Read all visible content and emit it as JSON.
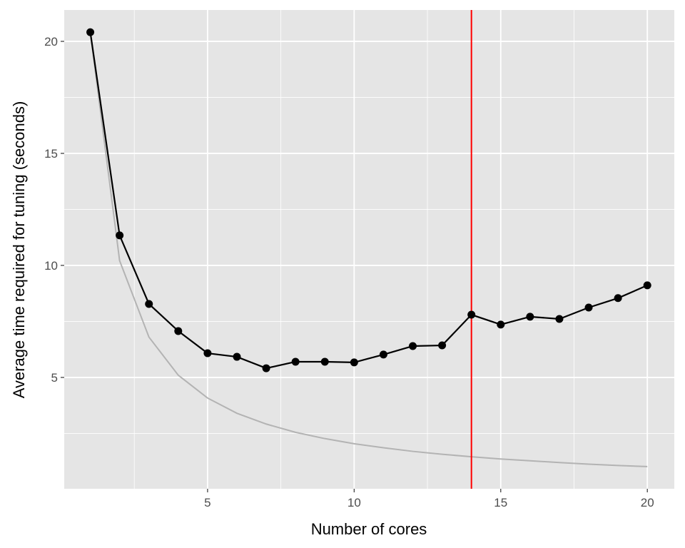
{
  "chart_data": {
    "type": "line",
    "title": "",
    "xlabel": "Number of cores",
    "ylabel": "Average time required for tuning (seconds)",
    "xlim": [
      0.11,
      20.92
    ],
    "ylim": [
      0.03,
      21.4
    ],
    "xticks": [
      5,
      10,
      15,
      20
    ],
    "yticks": [
      5,
      10,
      15,
      20
    ],
    "grid": true,
    "x": [
      1,
      2,
      3,
      4,
      5,
      6,
      7,
      8,
      9,
      10,
      11,
      12,
      13,
      14,
      15,
      16,
      17,
      18,
      19,
      20
    ],
    "series": [
      {
        "role": "measured",
        "color": "#000000",
        "markers": true,
        "values": [
          20.41,
          11.34,
          8.28,
          7.07,
          6.08,
          5.92,
          5.41,
          5.7,
          5.7,
          5.67,
          6.02,
          6.4,
          6.43,
          7.8,
          7.36,
          7.71,
          7.61,
          8.12,
          8.54,
          9.11
        ]
      },
      {
        "role": "ideal",
        "color": "#b3b3b3",
        "markers": false,
        "values": [
          20.41,
          10.21,
          6.8,
          5.1,
          4.08,
          3.4,
          2.92,
          2.55,
          2.27,
          2.04,
          1.86,
          1.7,
          1.57,
          1.46,
          1.36,
          1.28,
          1.2,
          1.13,
          1.07,
          1.02
        ]
      }
    ],
    "vline": {
      "x": 14,
      "color": "#ff0000"
    },
    "panel_background": "#e5e5e5",
    "grid_color": "#ffffff"
  }
}
